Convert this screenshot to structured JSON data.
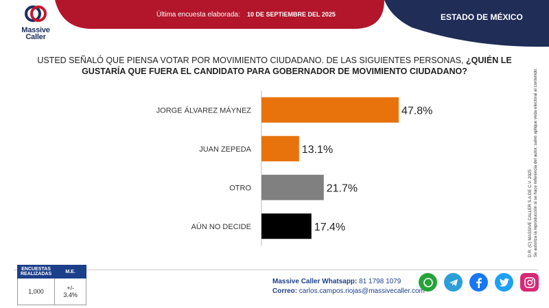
{
  "brand": {
    "name_line1": "Massive",
    "name_line2": "Caller"
  },
  "header": {
    "survey_label": "Última encuesta elaborada:",
    "survey_date": "10 DE SEPTIEMBRE DEL 2025",
    "state": "ESTADO DE MÉXICO",
    "colors": {
      "red": "#b3162b",
      "navy": "#1f2d57"
    }
  },
  "question": {
    "normal": "USTED SEÑALÓ QUE PIENSA VOTAR POR MOVIMIENTO CIUDADANO.  DE LAS SIGUIENTES PERSONAS,",
    "bold": "¿QUIÉN LE GUSTARÍA QUE FUERA EL CANDIDATO PARA GOBERNADOR DE MOVIMIENTO CIUDADANO?"
  },
  "chart_data": {
    "type": "bar",
    "orientation": "horizontal",
    "categories": [
      "JORGE ÁLVAREZ MÁYNEZ",
      "JUAN ZEPEDA",
      "OTRO",
      "AÚN NO DECIDE"
    ],
    "values": [
      47.8,
      13.1,
      21.7,
      17.4
    ],
    "labels": [
      "47.8%",
      "13.1%",
      "21.7%",
      "17.4%"
    ],
    "colors": [
      "#e8730c",
      "#e8730c",
      "#808080",
      "#000000"
    ]
  },
  "side_note": {
    "line1": "D.R. (C) MASSIVE CALLER S.A DE C.V. 2025",
    "line2": "Se autoriza la reproducción si se hace referencia del autor, salvo aplique veda electoral al contenido."
  },
  "stats": {
    "headers": [
      "ENCUESTAS REALIZADAS",
      "M.E."
    ],
    "values": [
      "1,000",
      "+/- 3.4%"
    ]
  },
  "contact": {
    "whatsapp_label": "Massive Caller Whatsapp:",
    "whatsapp_value": "81 1798 1079",
    "email_label": "Correo:",
    "email_value": "carlos.campos.riojas@massivecaller.com"
  },
  "social": [
    "whatsapp-icon",
    "telegram-icon",
    "facebook-icon",
    "twitter-icon",
    "instagram-icon"
  ]
}
